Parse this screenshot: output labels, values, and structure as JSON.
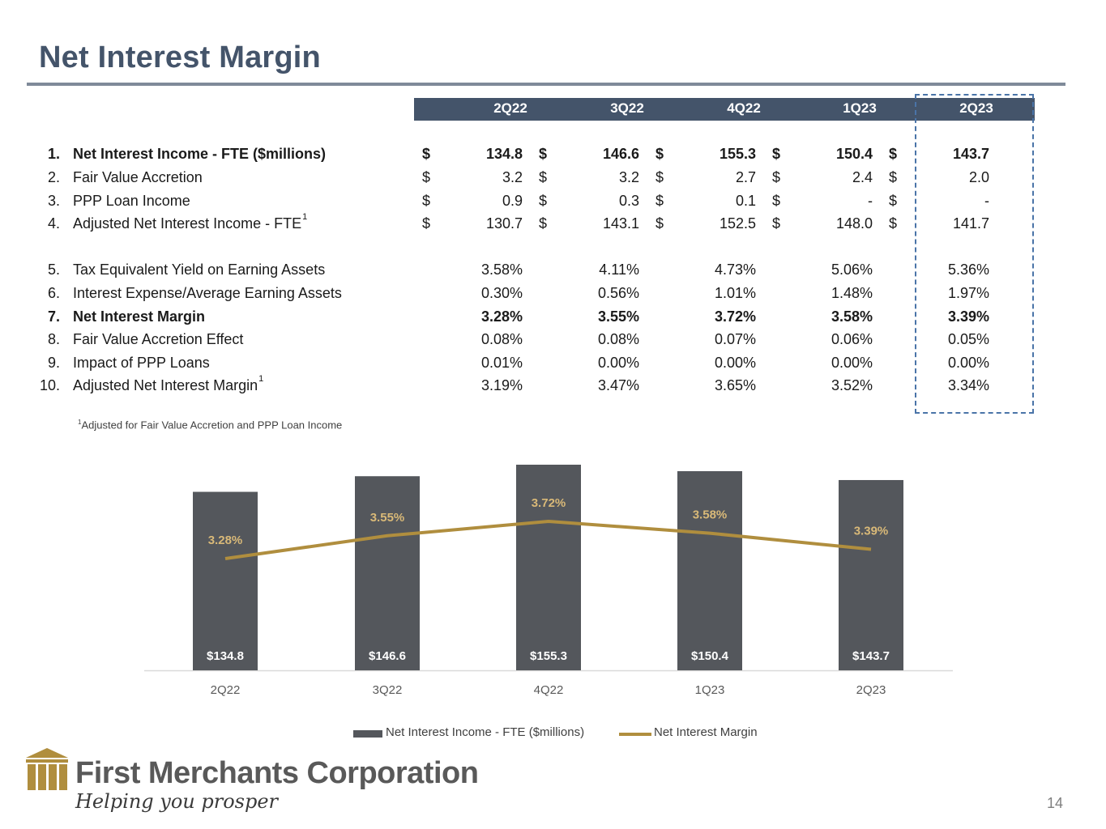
{
  "title": "Net Interest Margin",
  "table": {
    "columns": [
      "2Q22",
      "3Q22",
      "4Q22",
      "1Q23",
      "2Q23"
    ],
    "rows": [
      {
        "num": "1.",
        "label": "Net Interest Income - FTE ($millions)",
        "sup": "",
        "bold": true,
        "dollar": "$",
        "values": [
          "134.8",
          "146.6",
          "155.3",
          "150.4",
          "143.7"
        ]
      },
      {
        "num": "2.",
        "label": "Fair Value Accretion",
        "sup": "",
        "bold": false,
        "dollar": "$",
        "values": [
          "3.2",
          "3.2",
          "2.7",
          "2.4",
          "2.0"
        ]
      },
      {
        "num": "3.",
        "label": "PPP Loan Income",
        "sup": "",
        "bold": false,
        "dollar": "$",
        "values": [
          "0.9",
          "0.3",
          "0.1",
          "-",
          "-"
        ]
      },
      {
        "num": "4.",
        "label": "Adjusted Net Interest Income - FTE",
        "sup": "1",
        "bold": false,
        "dollar": "$",
        "values": [
          "130.7",
          "143.1",
          "152.5",
          "148.0",
          "141.7"
        ]
      },
      {
        "num": "5.",
        "label": "Tax Equivalent Yield on Earning Assets",
        "sup": "",
        "bold": false,
        "dollar": "",
        "values": [
          "3.58%",
          "4.11%",
          "4.73%",
          "5.06%",
          "5.36%"
        ]
      },
      {
        "num": "6.",
        "label": "Interest Expense/Average Earning Assets",
        "sup": "",
        "bold": false,
        "dollar": "",
        "values": [
          "0.30%",
          "0.56%",
          "1.01%",
          "1.48%",
          "1.97%"
        ]
      },
      {
        "num": "7.",
        "label": "Net Interest Margin",
        "sup": "",
        "bold": true,
        "dollar": "",
        "values": [
          "3.28%",
          "3.55%",
          "3.72%",
          "3.58%",
          "3.39%"
        ]
      },
      {
        "num": "8.",
        "label": "Fair Value Accretion Effect",
        "sup": "",
        "bold": false,
        "dollar": "",
        "values": [
          "0.08%",
          "0.08%",
          "0.07%",
          "0.06%",
          "0.05%"
        ]
      },
      {
        "num": "9.",
        "label": "Impact of PPP Loans",
        "sup": "",
        "bold": false,
        "dollar": "",
        "values": [
          "0.01%",
          "0.00%",
          "0.00%",
          "0.00%",
          "0.00%"
        ]
      },
      {
        "num": "10.",
        "label": "Adjusted Net Interest Margin",
        "sup": "1",
        "bold": false,
        "dollar": "",
        "values": [
          "3.19%",
          "3.47%",
          "3.65%",
          "3.52%",
          "3.34%"
        ]
      }
    ]
  },
  "footnote": {
    "sup": "1",
    "text": "Adjusted for Fair Value Accretion and PPP Loan Income"
  },
  "chart_data": {
    "type": "bar",
    "categories": [
      "2Q22",
      "3Q22",
      "4Q22",
      "1Q23",
      "2Q23"
    ],
    "series": [
      {
        "name": "Net Interest Income - FTE ($millions)",
        "type": "bar",
        "values": [
          134.8,
          146.6,
          155.3,
          150.4,
          143.7
        ],
        "labels": [
          "$134.8",
          "$146.6",
          "$155.3",
          "$150.4",
          "$143.7"
        ],
        "color": "#54575c"
      },
      {
        "name": "Net Interest Margin",
        "type": "line",
        "values": [
          3.28,
          3.55,
          3.72,
          3.58,
          3.39
        ],
        "labels": [
          "3.28%",
          "3.55%",
          "3.72%",
          "3.58%",
          "3.39%"
        ],
        "color": "#b08e3e"
      }
    ],
    "title": "",
    "xlabel": "",
    "ylabel": "",
    "legend": "bottom",
    "grid": false
  },
  "brand": {
    "name": "First Merchants Corporation",
    "tagline": "Helping you prosper",
    "logo": "building-columns-icon",
    "color": "#b08e3e"
  },
  "page_number": "14"
}
